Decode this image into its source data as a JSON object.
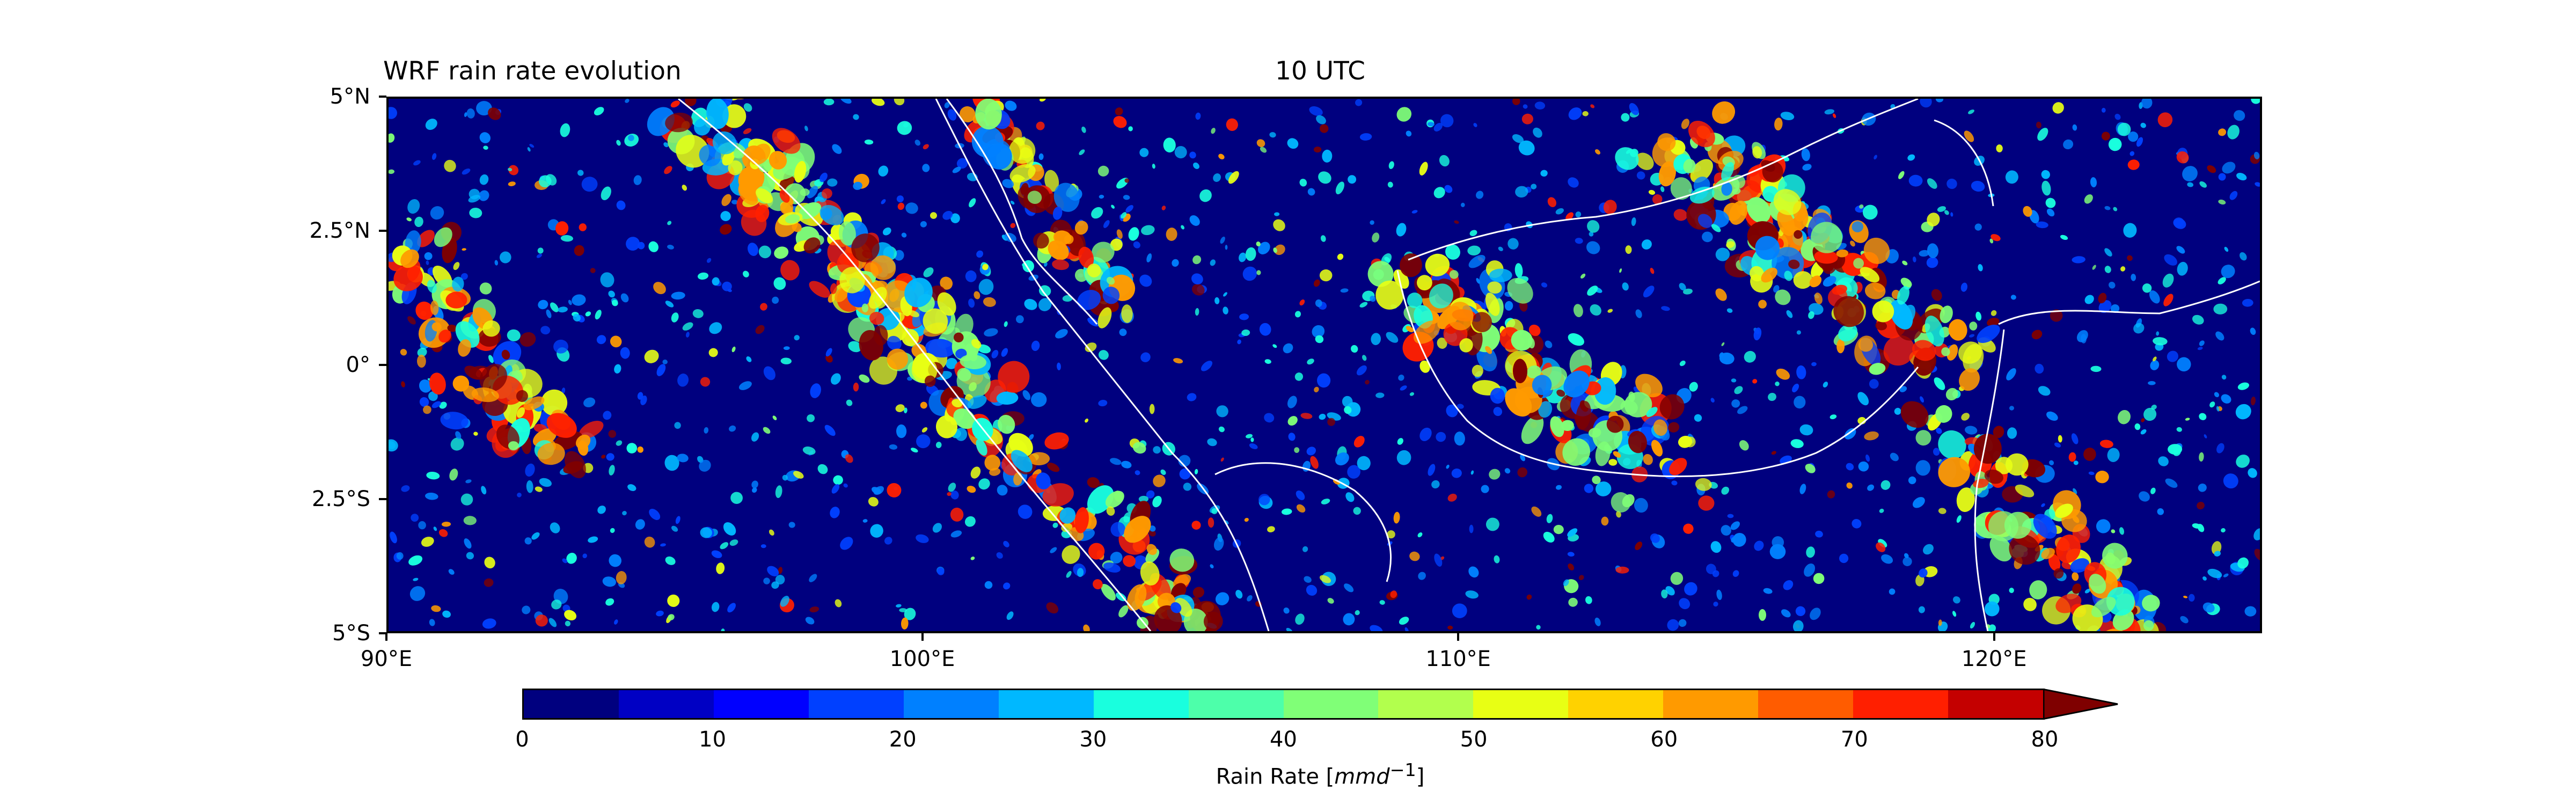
{
  "figure": {
    "title_left": "WRF rain rate evolution",
    "title_right": "10 UTC"
  },
  "map": {
    "x_ticks": [
      "90°E",
      "100°E",
      "110°E",
      "120°E"
    ],
    "y_ticks": [
      "5°N",
      "2.5°N",
      "0°",
      "2.5°S",
      "5°S"
    ],
    "x_tick_values": [
      90,
      100,
      110,
      120
    ],
    "y_tick_values": [
      5,
      2.5,
      0,
      -2.5,
      -5
    ],
    "lon_range": [
      90,
      125
    ],
    "lat_range": [
      -5,
      5
    ],
    "background_color": "#00007f",
    "coastline_color": "#ffffff",
    "colormap": "jet"
  },
  "colorbar": {
    "label_prefix": "Rain Rate [",
    "label_unit": "mmd",
    "label_exp": "−1",
    "label_suffix": "]",
    "ticks": [
      "0",
      "10",
      "20",
      "30",
      "40",
      "50",
      "60",
      "70",
      "80"
    ],
    "tick_values": [
      0,
      10,
      20,
      30,
      40,
      50,
      60,
      70,
      80
    ],
    "range": [
      0,
      80
    ],
    "extend": "max",
    "level_colors": [
      "#00007f",
      "#0000c4",
      "#0000ff",
      "#0040ff",
      "#0080ff",
      "#00b8ff",
      "#19ffde",
      "#4dffaa",
      "#80ff77",
      "#b2ff4d",
      "#e8ff14",
      "#ffd200",
      "#ff9a00",
      "#ff5c00",
      "#ff1f00",
      "#c40000",
      "#7f0000"
    ]
  }
}
